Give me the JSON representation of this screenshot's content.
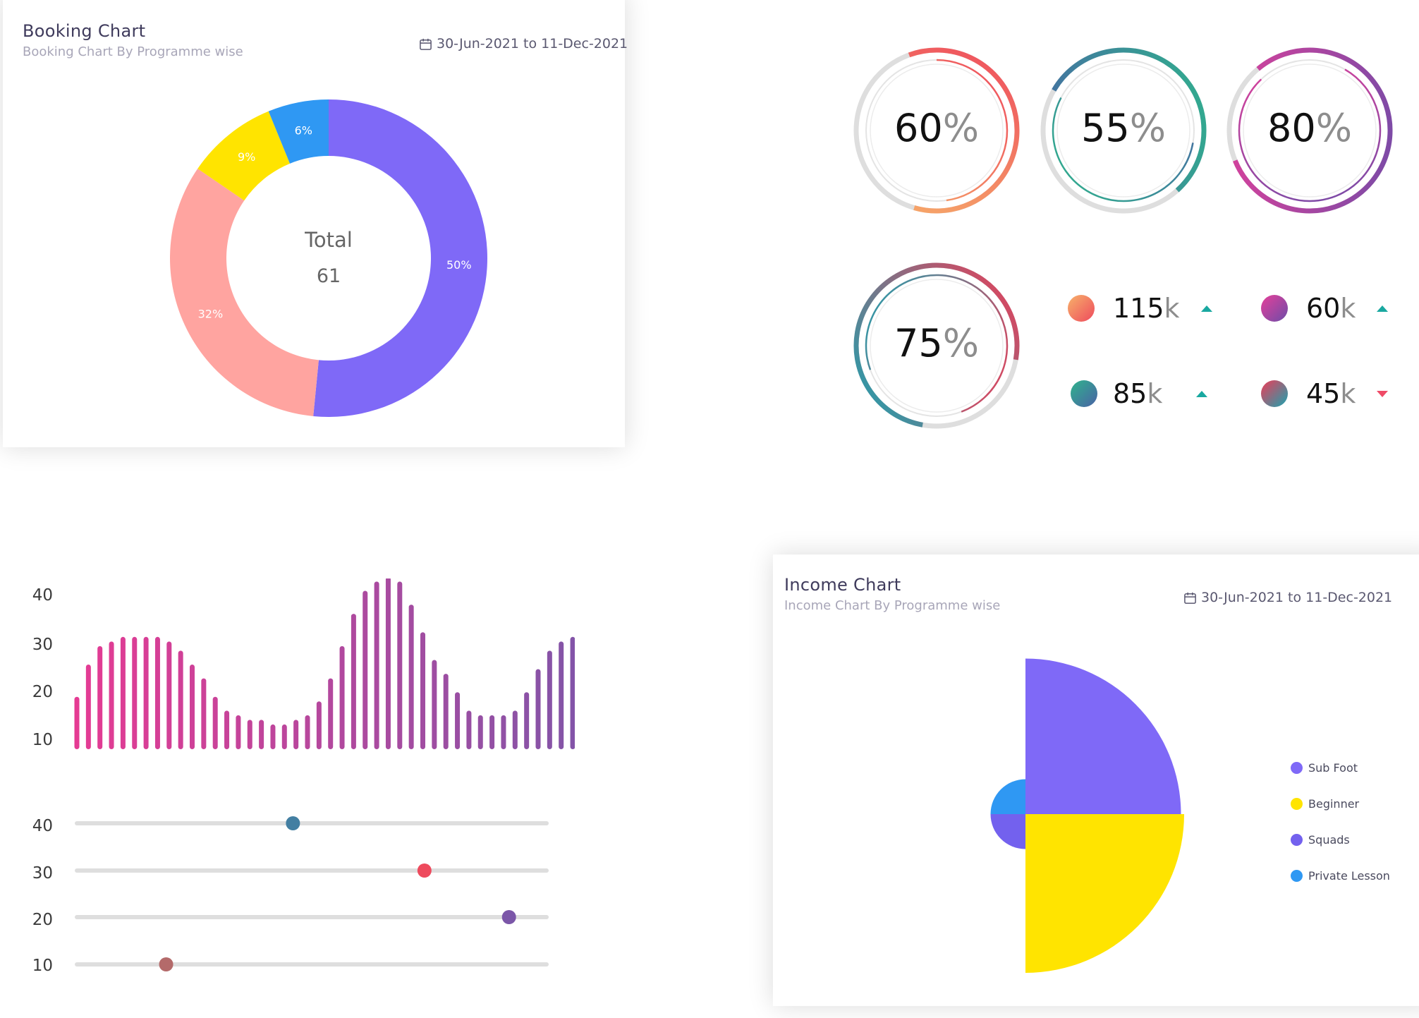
{
  "booking": {
    "title": "Booking Chart",
    "subtitle": "Booking Chart By Programme wise",
    "date_range": "30-Jun-2021 to 11-Dec-2021",
    "center_label": "Total",
    "center_value": "61"
  },
  "rings": [
    {
      "value": "60",
      "unit": "%"
    },
    {
      "value": "55",
      "unit": "%"
    },
    {
      "value": "80",
      "unit": "%"
    },
    {
      "value": "75",
      "unit": "%"
    }
  ],
  "stats": [
    {
      "value": "115",
      "unit": "k",
      "trend": "up",
      "icon": "triangle-up-icon"
    },
    {
      "value": "60",
      "unit": "k",
      "trend": "up",
      "icon": "triangle-up-icon"
    },
    {
      "value": "85",
      "unit": "k",
      "trend": "up",
      "icon": "triangle-up-icon"
    },
    {
      "value": "45",
      "unit": "k",
      "trend": "down",
      "icon": "triangle-down-icon"
    }
  ],
  "income": {
    "title": "Income Chart",
    "subtitle": "Income Chart By Programme wise",
    "date_range": "30-Jun-2021 to 11-Dec-2021"
  },
  "colors": {
    "purple": "#7f69f7",
    "salmon": "#ffa4a0",
    "yellow": "#ffe400",
    "blue": "#2f98f3",
    "squads": "#7361ee",
    "teal_up": "#19a8a0",
    "red_down": "#ef4b67"
  },
  "chart_data": [
    {
      "type": "pie",
      "title": "Booking Chart",
      "categories": [
        "",
        "",
        "",
        ""
      ],
      "values": [
        50,
        32,
        9,
        6
      ],
      "data_labels": [
        "50%",
        "32%",
        "9%",
        "6%"
      ],
      "colors": [
        "#7f69f7",
        "#ffa4a0",
        "#ffe400",
        "#2f98f3"
      ],
      "donut": true
    },
    {
      "type": "bar",
      "title": "",
      "ylim": [
        10,
        40
      ],
      "yticks": [
        "40",
        "30",
        "20",
        "10"
      ],
      "values": [
        18,
        25,
        29,
        30,
        31,
        31,
        31,
        31,
        30,
        28,
        25,
        22,
        18,
        15,
        14,
        13,
        13,
        12,
        12,
        13,
        14,
        17,
        22,
        29,
        36,
        41,
        43,
        44,
        43,
        38,
        32,
        26,
        23,
        19,
        15,
        14,
        14,
        14,
        15,
        19,
        24,
        28,
        30,
        31,
        31
      ]
    },
    {
      "type": "bar",
      "title": "",
      "orientation": "horizontal",
      "categories": [
        "40",
        "30",
        "20",
        "10"
      ],
      "values": [
        0.46,
        0.74,
        0.92,
        0.19
      ],
      "value_unit": "fraction of track"
    },
    {
      "type": "pie",
      "title": "Income Chart",
      "variant": "polar-area",
      "categories": [
        "Sub Foot",
        "Beginner",
        "Squads",
        "Private Lesson"
      ],
      "values": [
        1,
        1,
        1,
        1
      ],
      "radii": [
        0.98,
        1.0,
        0.22,
        0.22
      ],
      "colors": [
        "#7f69f7",
        "#ffe400",
        "#7361ee",
        "#2f98f3"
      ]
    }
  ]
}
